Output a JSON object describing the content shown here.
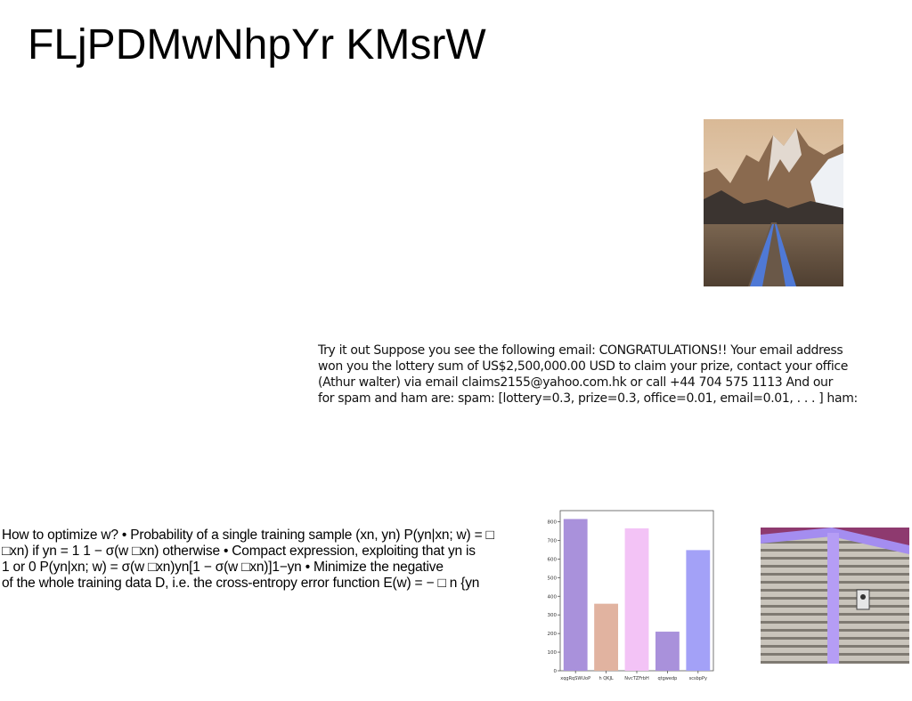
{
  "title": "FLjPDMwNhpYr KMsrW",
  "email_paragraph": {
    "lines": [
      "Try it out Suppose you see the following email: CONGRATULATIONS!! Your email address",
      "won you the lottery sum of US$2,500,000.00 USD to claim your prize, contact your office",
      "(Athur walter) via email claims2155@yahoo.com.hk or call +44 704 575 1113 And our",
      "for spam and ham are: spam: [lottery=0.3, prize=0.3, office=0.01, email=0.01, . . . ] ham:"
    ]
  },
  "lr_paragraph": {
    "lines": [
      "How to optimize w? • Probability of a single training sample (xn, yn) P(yn|xn; w) = □",
      "□xn) if yn = 1 1 − σ(w □xn) otherwise • Compact expression, exploiting that yn is",
      "1 or 0 P(yn|xn; w) = σ(w □xn)yn[1 − σ(w □xn)]1−yn • Minimize the negative",
      "of the whole training data D, i.e. the cross-entropy error function E(w) = − □ n {yn"
    ]
  },
  "images": {
    "mountain_road": "mountain-road-photo",
    "building_facade": "building-facade-photo"
  },
  "chart_data": {
    "type": "bar",
    "categories": [
      "xqgRqSWUoP",
      "h QKJL",
      "NvcTZFrbH",
      "qtgwedp",
      "scsbpPy"
    ],
    "values": [
      815,
      360,
      765,
      210,
      648
    ],
    "colors": [
      "#a991db",
      "#e1b3a0",
      "#f3c3f6",
      "#a991db",
      "#a3a1f7"
    ],
    "yticks": [
      0,
      100,
      200,
      300,
      400,
      500,
      600,
      700,
      800
    ],
    "ylim": [
      0,
      860
    ],
    "title": "",
    "xlabel": "",
    "ylabel": "",
    "grid": false,
    "legend": "none"
  }
}
